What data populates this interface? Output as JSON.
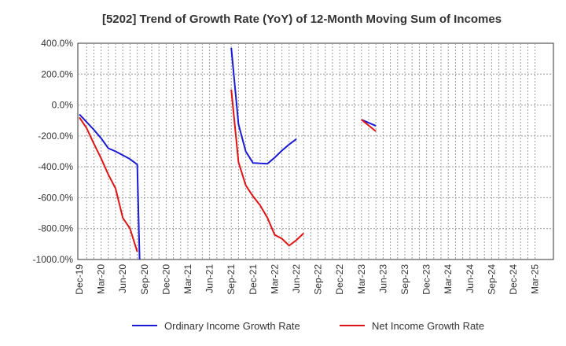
{
  "chart_data": {
    "type": "line",
    "title": "[5202]  Trend of Growth Rate (YoY) of 12-Month Moving Sum of Incomes",
    "xlabel": "",
    "ylabel": "",
    "x_categories": [
      "Dec-19",
      "Mar-20",
      "Jun-20",
      "Sep-20",
      "Dec-20",
      "Mar-21",
      "Jun-21",
      "Sep-21",
      "Dec-21",
      "Mar-22",
      "Jun-22",
      "Sep-22",
      "Dec-22",
      "Mar-23",
      "Jun-23",
      "Sep-23",
      "Dec-23",
      "Mar-24",
      "Jun-24",
      "Sep-24",
      "Dec-24",
      "Mar-25"
    ],
    "y_ticks": [
      "400.0%",
      "200.0%",
      "0.0%",
      "-200.0%",
      "-400.0%",
      "-600.0%",
      "-800.0%",
      "-1000.0%"
    ],
    "ylim": [
      -1000,
      400
    ],
    "grid": true,
    "legend_position": "bottom",
    "series": [
      {
        "name": "Ordinary Income Growth Rate",
        "color": "#1a1ad4",
        "points": [
          [
            0,
            -60
          ],
          [
            1,
            -110
          ],
          [
            2,
            -160
          ],
          [
            3,
            -215
          ],
          [
            4,
            -280
          ],
          [
            5,
            -300
          ],
          [
            6,
            -325
          ],
          [
            7,
            -350
          ],
          [
            8,
            -385
          ],
          [
            8.33,
            -1000
          ],
          [
            null,
            null
          ],
          [
            21,
            370
          ],
          [
            22,
            -125
          ],
          [
            23,
            -300
          ],
          [
            24,
            -375
          ],
          [
            26,
            -380
          ],
          [
            27,
            -340
          ],
          [
            28,
            -295
          ],
          [
            29,
            -255
          ],
          [
            30,
            -220
          ],
          [
            null,
            null
          ],
          [
            39,
            -95
          ],
          [
            41,
            -135
          ]
        ]
      },
      {
        "name": "Net Income Growth Rate",
        "color": "#e01414",
        "points": [
          [
            0,
            -80
          ],
          [
            1,
            -150
          ],
          [
            2,
            -250
          ],
          [
            3,
            -345
          ],
          [
            4,
            -450
          ],
          [
            5,
            -540
          ],
          [
            6,
            -730
          ],
          [
            7,
            -800
          ],
          [
            8,
            -950
          ],
          [
            null,
            null
          ],
          [
            21,
            100
          ],
          [
            22,
            -370
          ],
          [
            23,
            -520
          ],
          [
            24,
            -590
          ],
          [
            25,
            -650
          ],
          [
            26,
            -730
          ],
          [
            27,
            -840
          ],
          [
            28,
            -865
          ],
          [
            29,
            -910
          ],
          [
            30,
            -875
          ],
          [
            31,
            -830
          ],
          [
            null,
            null
          ],
          [
            39,
            -95
          ],
          [
            41,
            -170
          ]
        ]
      }
    ]
  }
}
